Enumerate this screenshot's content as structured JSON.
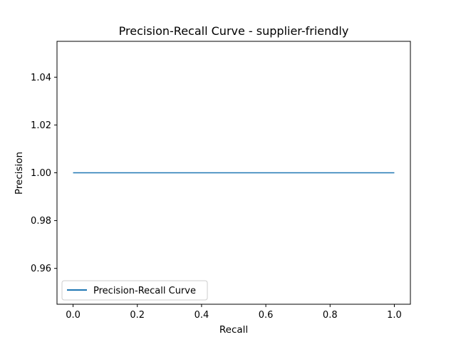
{
  "chart_data": {
    "type": "line",
    "title": "Precision-Recall Curve - supplier-friendly",
    "xlabel": "Recall",
    "ylabel": "Precision",
    "xlim": [
      -0.05,
      1.05
    ],
    "ylim": [
      0.945,
      1.055
    ],
    "xticks": [
      0.0,
      0.2,
      0.4,
      0.6,
      0.8,
      1.0
    ],
    "xtick_labels": [
      "0.0",
      "0.2",
      "0.4",
      "0.6",
      "0.8",
      "1.0"
    ],
    "yticks": [
      0.96,
      0.98,
      1.0,
      1.02,
      1.04
    ],
    "ytick_labels": [
      "0.96",
      "0.98",
      "1.00",
      "1.02",
      "1.04"
    ],
    "grid": false,
    "legend_position": "lower-left",
    "series": [
      {
        "name": "Precision-Recall Curve",
        "color": "#1f77b4",
        "x": [
          0.0,
          1.0
        ],
        "y": [
          1.0,
          1.0
        ]
      }
    ]
  }
}
